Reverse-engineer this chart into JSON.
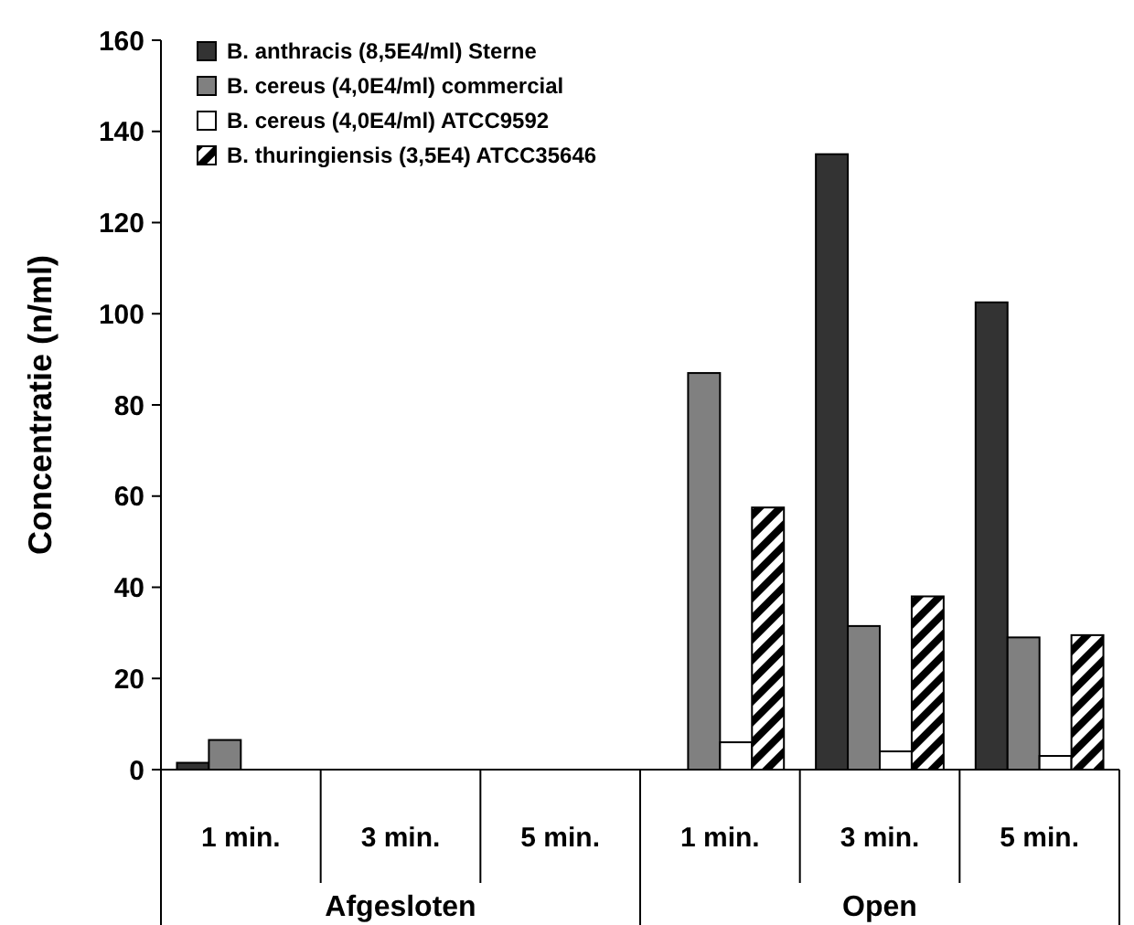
{
  "chart_data": {
    "type": "bar",
    "ylabel": "Concentratie (n/ml)",
    "categories": [
      "1 min.",
      "3 min.",
      "5 min.",
      "1 min.",
      "3 min.",
      "5 min."
    ],
    "annotations": [
      "Afgesloten",
      "Open"
    ],
    "series": [
      {
        "name": "B. anthracis (8,5E4/ml) Sterne",
        "color": "#333333",
        "values": [
          1.5,
          0,
          0,
          0,
          135,
          102.5
        ]
      },
      {
        "name": "B. cereus (4,0E4/ml) commercial",
        "color": "#808080",
        "values": [
          6.5,
          0,
          0,
          87,
          31.5,
          29
        ]
      },
      {
        "name": "B. cereus (4,0E4/ml) ATCC9592",
        "color": "#ffffff",
        "values": [
          0,
          0,
          0,
          6,
          4,
          3
        ]
      },
      {
        "name": "B. thuringiensis (3,5E4) ATCC35646",
        "color": "#000000",
        "values": [
          0,
          0,
          0,
          57.5,
          38,
          29.5
        ]
      }
    ],
    "ylim": [
      0,
      160
    ],
    "yticks": [
      0,
      20,
      40,
      60,
      80,
      100,
      120,
      140,
      160
    ],
    "grid": false,
    "legend": "top left"
  }
}
